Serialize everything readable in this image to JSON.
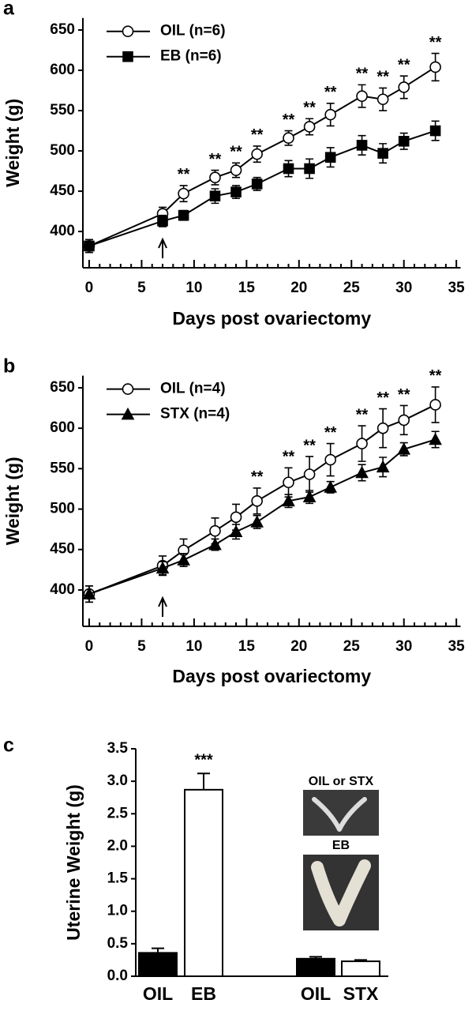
{
  "chart_data": [
    {
      "panel": "a",
      "type": "line",
      "xlabel": "Days post ovariectomy",
      "ylabel": "Weight (g)",
      "x": [
        0,
        7,
        9,
        12,
        14,
        16,
        19,
        21,
        23,
        26,
        28,
        30,
        33
      ],
      "series": [
        {
          "name": "OIL (n=6)",
          "color": "#000000",
          "marker": "circle",
          "marker_fill": "#ffffff",
          "values": [
            382,
            422,
            447,
            467,
            476,
            496,
            516,
            530,
            545,
            568,
            564,
            579,
            604
          ],
          "errors": [
            8,
            8,
            10,
            9,
            9,
            10,
            9,
            10,
            14,
            14,
            14,
            14,
            17
          ],
          "significance": [
            null,
            null,
            "**",
            "**",
            "**",
            "**",
            "**",
            "**",
            "**",
            "**",
            "**",
            "**",
            "**"
          ]
        },
        {
          "name": "EB (n=6)",
          "color": "#000000",
          "marker": "square",
          "marker_fill": "#000000",
          "values": [
            382,
            413,
            420,
            444,
            449,
            459,
            478,
            478,
            492,
            507,
            497,
            512,
            525
          ],
          "errors": [
            8,
            7,
            6,
            9,
            8,
            8,
            10,
            12,
            12,
            12,
            12,
            10,
            12
          ]
        }
      ],
      "arrow_x": 7,
      "legend": "upper left",
      "xlim": [
        -0.6,
        35.4
      ],
      "xticks": [
        0,
        5,
        10,
        15,
        20,
        25,
        30,
        35
      ],
      "ylim": [
        355,
        665
      ],
      "yticks": [
        400,
        450,
        500,
        550,
        600,
        650
      ]
    },
    {
      "panel": "b",
      "type": "line",
      "xlabel": "Days post ovariectomy",
      "ylabel": "Weight (g)",
      "x": [
        0,
        7,
        9,
        12,
        14,
        16,
        19,
        21,
        23,
        26,
        28,
        30,
        33
      ],
      "series": [
        {
          "name": "OIL (n=4)",
          "color": "#000000",
          "marker": "circle",
          "marker_fill": "#ffffff",
          "values": [
            395,
            430,
            449,
            473,
            490,
            510,
            533,
            543,
            561,
            581,
            600,
            610,
            629
          ],
          "errors": [
            10,
            12,
            14,
            16,
            16,
            16,
            18,
            22,
            20,
            22,
            24,
            18,
            22
          ],
          "significance": [
            null,
            null,
            null,
            null,
            null,
            "**",
            "**",
            "**",
            "**",
            "**",
            "**",
            "**",
            "**"
          ]
        },
        {
          "name": "STX (n=4)",
          "color": "#000000",
          "marker": "triangle",
          "marker_fill": "#000000",
          "values": [
            395,
            427,
            437,
            456,
            472,
            484,
            510,
            515,
            527,
            545,
            552,
            574,
            586
          ],
          "errors": [
            10,
            8,
            8,
            7,
            9,
            8,
            8,
            8,
            7,
            10,
            12,
            8,
            10
          ]
        }
      ],
      "arrow_x": 7,
      "legend": "upper left",
      "xlim": [
        -0.6,
        35.4
      ],
      "xticks": [
        0,
        5,
        10,
        15,
        20,
        25,
        30,
        35
      ],
      "ylim": [
        355,
        665
      ],
      "yticks": [
        400,
        450,
        500,
        550,
        600,
        650
      ]
    },
    {
      "panel": "c",
      "type": "bar",
      "ylabel": "Uterine Weight (g)",
      "categories": [
        "OIL",
        "EB",
        "OIL",
        "STX"
      ],
      "values": [
        0.36,
        2.87,
        0.27,
        0.23
      ],
      "errors": [
        0.07,
        0.25,
        0.03,
        0.02
      ],
      "colors": [
        "#000000",
        "#ffffff",
        "#000000",
        "#ffffff"
      ],
      "significance": [
        null,
        "***",
        null,
        null
      ],
      "image_labels": [
        "OIL or STX",
        "EB"
      ],
      "ylim": [
        0,
        3.5
      ],
      "yticks": [
        {
          "value": 0,
          "label": "0.0"
        },
        {
          "value": 0.5,
          "label": "0.5"
        },
        {
          "value": 1,
          "label": "1.0"
        },
        {
          "value": 1.5,
          "label": "1.5"
        },
        {
          "value": 2,
          "label": "2.0"
        },
        {
          "value": 2.5,
          "label": "2.5"
        },
        {
          "value": 3,
          "label": "3.0"
        },
        {
          "value": 3.5,
          "label": "3.5"
        }
      ]
    }
  ]
}
